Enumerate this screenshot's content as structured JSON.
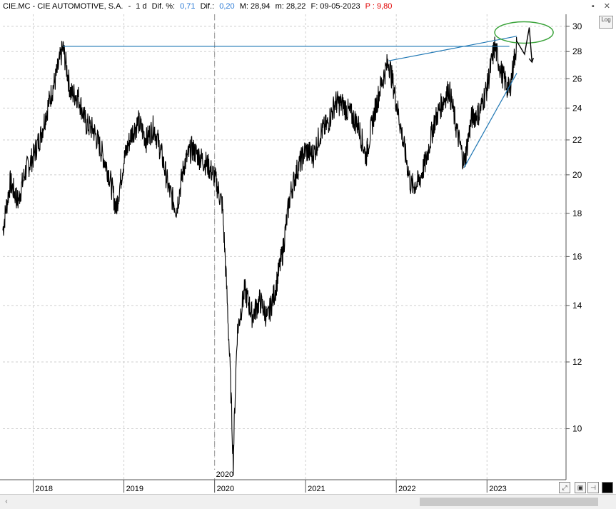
{
  "header": {
    "symbol": "CIE.MC - CIE AUTOMOTIVE, S.A.",
    "dash": "-",
    "interval": "1 d",
    "dif_pct_label": "Dif. %:",
    "dif_pct_value": "0,71",
    "dif_label": "Dif.:",
    "dif_value": "0,20",
    "max": "M: 28,94",
    "min": "m: 28,22",
    "date": "F: 09-05-2023",
    "price": "P : 9,80"
  },
  "window_buttons": [
    "▪",
    "✕"
  ],
  "log_button": "Log",
  "toolbar_icons": [
    "zoom-icon",
    "save-icon",
    "pin-icon",
    "color-icon"
  ],
  "colors": {
    "price": "#000000",
    "trendline": "#1f77b4",
    "circle": "#3aa33a",
    "grid": "#cfcfcf",
    "axis": "#555555"
  },
  "chart_data": {
    "type": "line",
    "title": "CIE.MC - CIE AUTOMOTIVE, S.A.",
    "xlabel": "",
    "ylabel": "",
    "y_scale": "log",
    "ylim": [
      8.7,
      31
    ],
    "y_ticks": [
      10,
      12,
      14,
      16,
      18,
      20,
      22,
      24,
      26,
      28,
      30
    ],
    "x_ticks": [
      "2018",
      "2019",
      "2020",
      "2021",
      "2022",
      "2023"
    ],
    "year_marker": "2020",
    "grid": true,
    "series": [
      {
        "points": [
          [
            "2017-09",
            17.2
          ],
          [
            "2017-10",
            19.6
          ],
          [
            "2017-11",
            18.6
          ],
          [
            "2017-12",
            20.2
          ],
          [
            "2018-01",
            21.0
          ],
          [
            "2018-02",
            22.3
          ],
          [
            "2018-03",
            24.1
          ],
          [
            "2018-04",
            26.0
          ],
          [
            "2018-05",
            28.3
          ],
          [
            "2018-06",
            25.0
          ],
          [
            "2018-07",
            24.8
          ],
          [
            "2018-08",
            23.0
          ],
          [
            "2018-09",
            22.6
          ],
          [
            "2018-10",
            21.4
          ],
          [
            "2018-11",
            20.1
          ],
          [
            "2018-12",
            18.2
          ],
          [
            "2019-01",
            20.8
          ],
          [
            "2019-02",
            22.4
          ],
          [
            "2019-03",
            23.1
          ],
          [
            "2019-04",
            22.0
          ],
          [
            "2019-05",
            22.8
          ],
          [
            "2019-06",
            21.2
          ],
          [
            "2019-07",
            19.2
          ],
          [
            "2019-08",
            18.2
          ],
          [
            "2019-09",
            20.6
          ],
          [
            "2019-10",
            21.5
          ],
          [
            "2019-11",
            21.0
          ],
          [
            "2019-12",
            20.6
          ],
          [
            "2020-01",
            19.9
          ],
          [
            "2020-02",
            18.4
          ],
          [
            "2020-03",
            12.2
          ],
          [
            "2020-03-16",
            9.1
          ],
          [
            "2020-04",
            13.0
          ],
          [
            "2020-05",
            14.6
          ],
          [
            "2020-06",
            13.6
          ],
          [
            "2020-07",
            14.2
          ],
          [
            "2020-08",
            13.5
          ],
          [
            "2020-09",
            14.6
          ],
          [
            "2020-10",
            16.2
          ],
          [
            "2020-11",
            19.0
          ],
          [
            "2020-12",
            20.4
          ],
          [
            "2021-01",
            21.4
          ],
          [
            "2021-02",
            21.1
          ],
          [
            "2021-03",
            22.4
          ],
          [
            "2021-04",
            23.0
          ],
          [
            "2021-05",
            24.4
          ],
          [
            "2021-06",
            24.2
          ],
          [
            "2021-07",
            23.6
          ],
          [
            "2021-08",
            22.9
          ],
          [
            "2021-09",
            21.0
          ],
          [
            "2021-10",
            23.4
          ],
          [
            "2021-11",
            25.6
          ],
          [
            "2021-12",
            27.3
          ],
          [
            "2022-01",
            24.4
          ],
          [
            "2022-02",
            21.6
          ],
          [
            "2022-03",
            19.4
          ],
          [
            "2022-04",
            19.6
          ],
          [
            "2022-05",
            20.8
          ],
          [
            "2022-06",
            23.0
          ],
          [
            "2022-07",
            24.2
          ],
          [
            "2022-08",
            25.3
          ],
          [
            "2022-09",
            22.6
          ],
          [
            "2022-10",
            20.6
          ],
          [
            "2022-11",
            23.4
          ],
          [
            "2022-12",
            23.7
          ],
          [
            "2023-01",
            25.4
          ],
          [
            "2023-02",
            28.4
          ],
          [
            "2023-03",
            26.4
          ],
          [
            "2023-04",
            25.1
          ],
          [
            "2023-05",
            28.7
          ]
        ]
      }
    ],
    "annotations": [
      {
        "type": "horizontal_line",
        "y": 28.4,
        "from": "2018-05",
        "to": "2023-04"
      },
      {
        "type": "trendline",
        "from": [
          "2021-12",
          27.3
        ],
        "to": [
          "2023-05",
          29.2
        ]
      },
      {
        "type": "trendline",
        "from": [
          "2022-10",
          20.4
        ],
        "to": [
          "2023-05",
          26.4
        ]
      },
      {
        "type": "ellipse",
        "center": [
          "2023-05",
          29.5
        ]
      },
      {
        "type": "projection_arrow",
        "points": [
          [
            "2023-05",
            28.8
          ],
          [
            "2023-06",
            27.8
          ],
          [
            "2023-06-20",
            29.9
          ],
          [
            "2023-07",
            27.2
          ]
        ]
      }
    ]
  }
}
